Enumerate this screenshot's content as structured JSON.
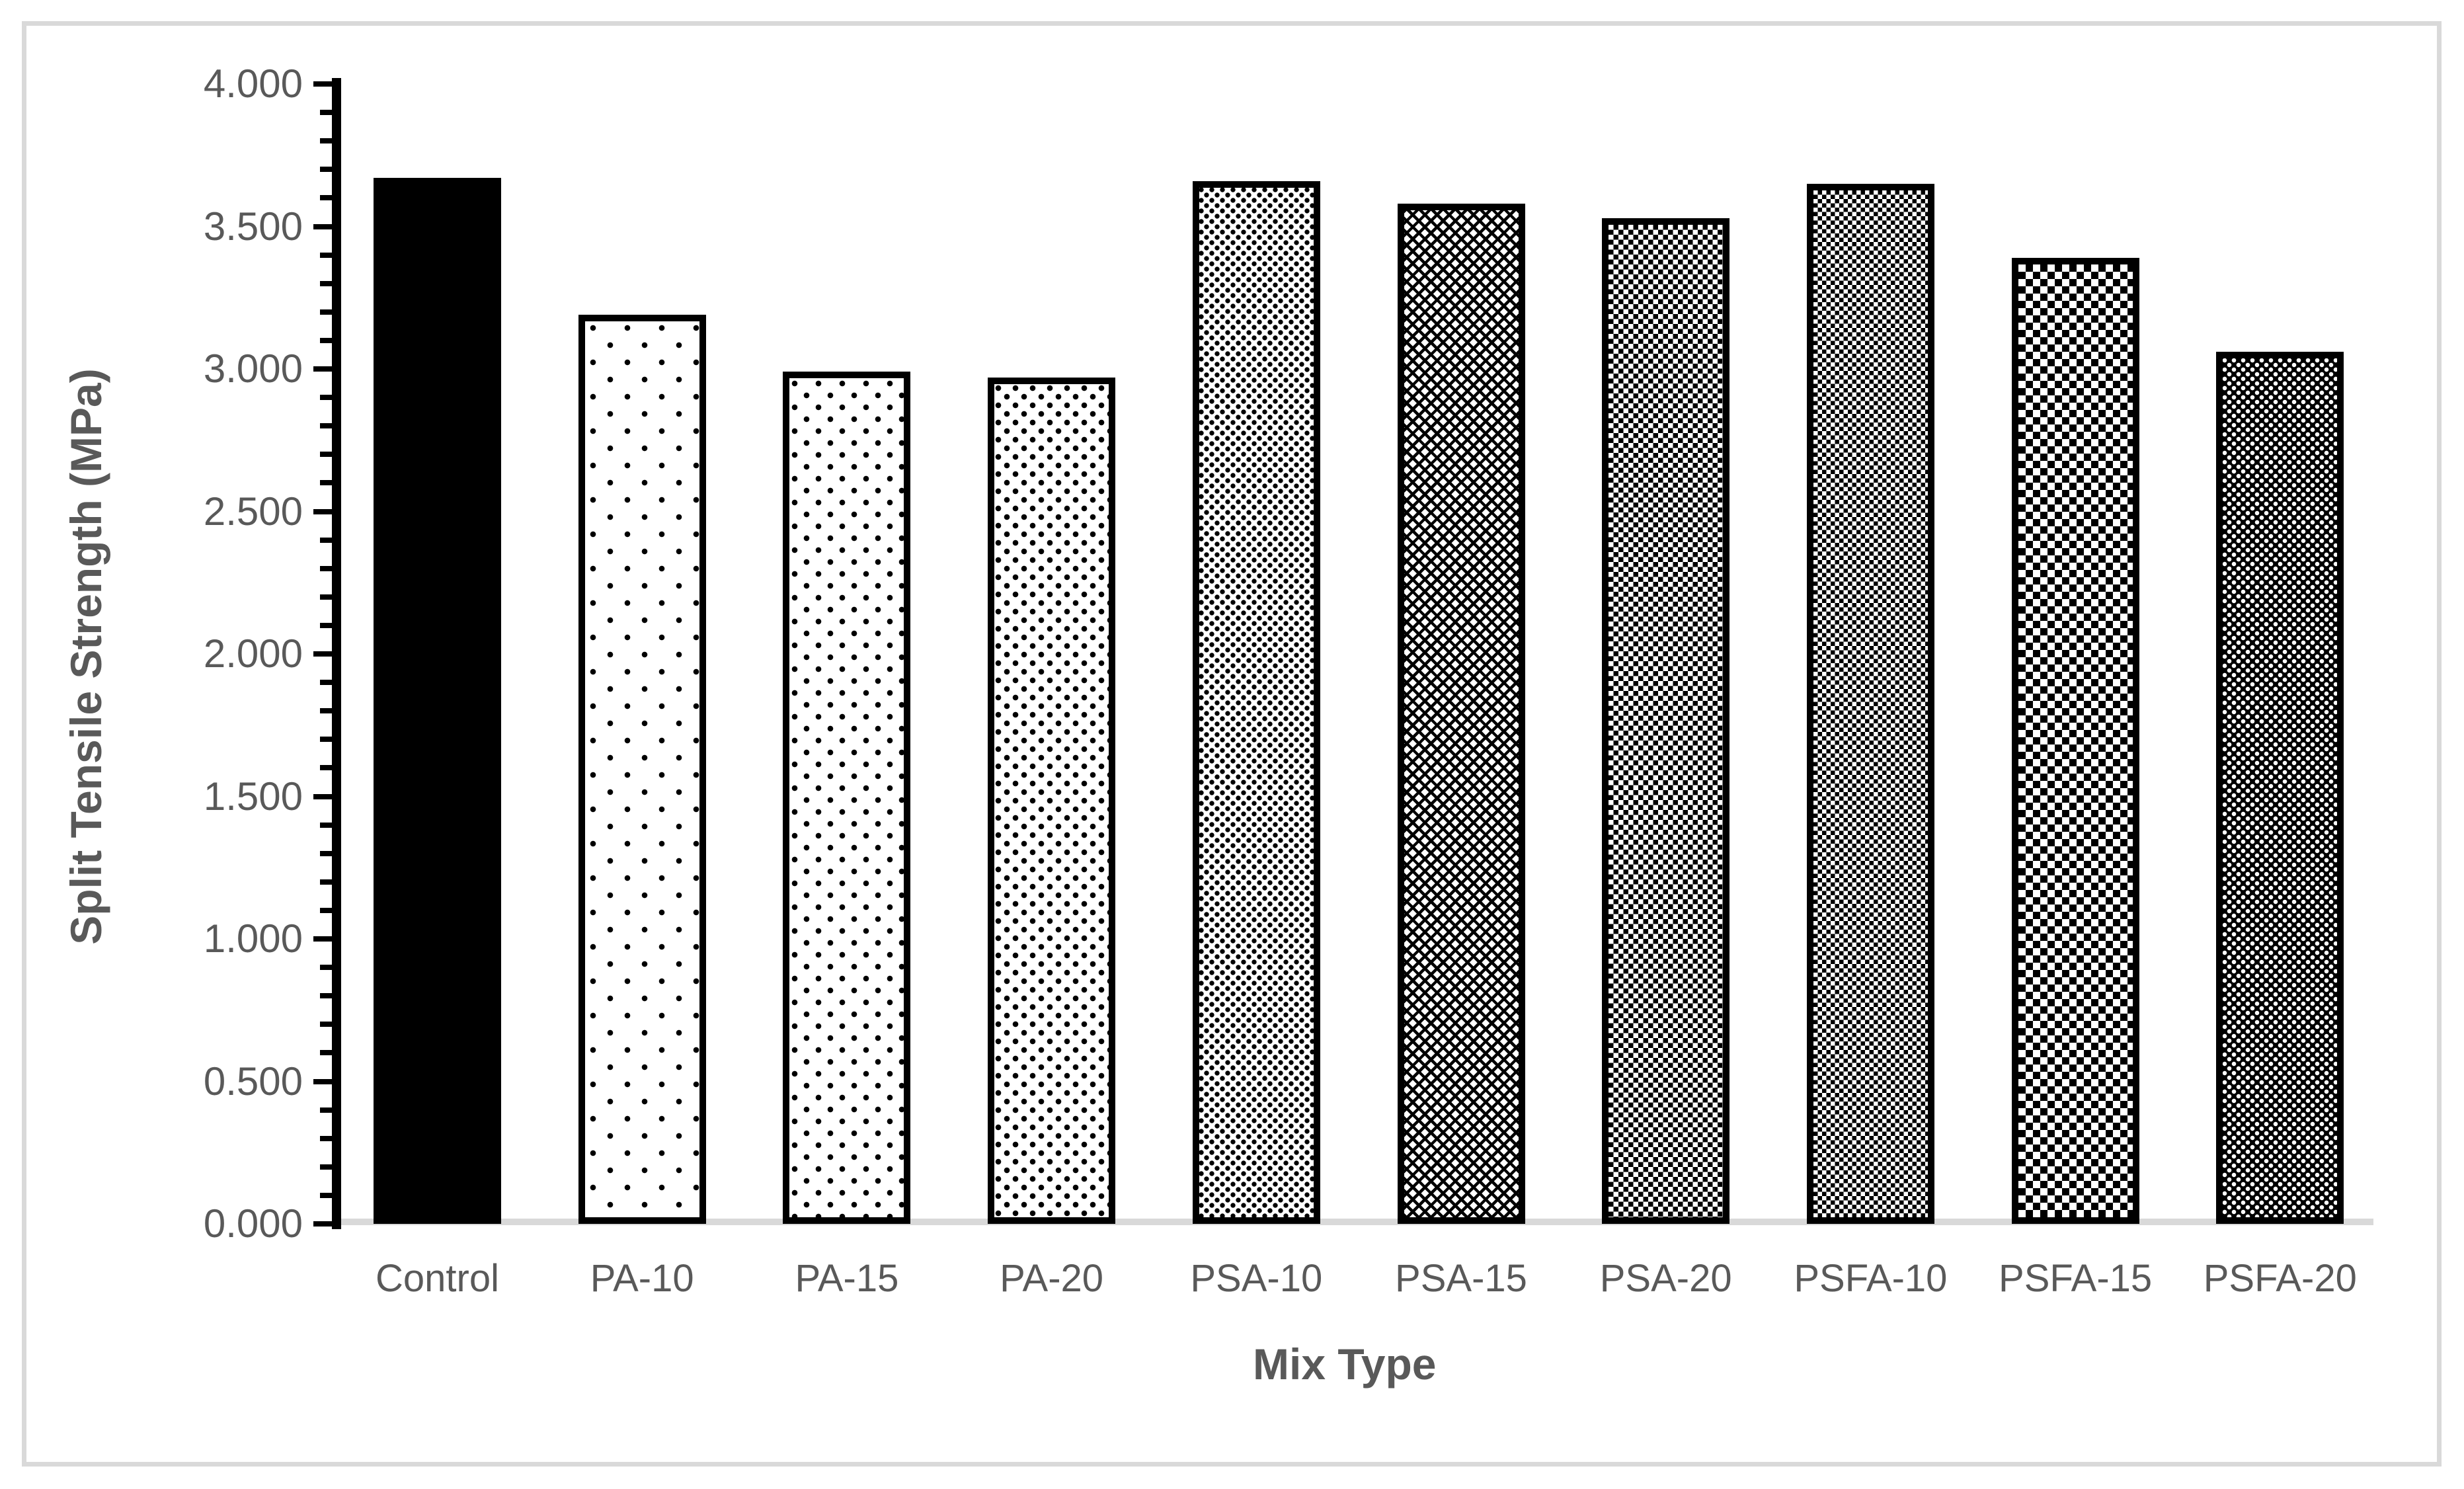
{
  "chart_data": {
    "type": "bar",
    "title": "",
    "xlabel": "Mix Type",
    "ylabel": "Split Tensile Strength (MPa)",
    "categories": [
      "Control",
      "PA-10",
      "PA-15",
      "PA-20",
      "PSA-10",
      "PSA-15",
      "PSA-20",
      "PSFA-10",
      "PSFA-15",
      "PSFA-20"
    ],
    "values": [
      3.67,
      3.19,
      2.99,
      2.97,
      3.66,
      3.58,
      3.53,
      3.65,
      3.39,
      3.06
    ],
    "bar_fill_styles": [
      "solid-black",
      "dots-sparse",
      "dots-medium",
      "dots-dense",
      "dots-fine",
      "diagonal-lattice",
      "checker-fine",
      "checker-dense",
      "checker-coarse",
      "white-dots-on-black"
    ],
    "ylim": [
      0.0,
      4.0
    ],
    "ytick_major_labels": [
      "0.000",
      "0.500",
      "1.000",
      "1.500",
      "2.000",
      "2.500",
      "3.000",
      "3.500",
      "4.000"
    ],
    "ytick_major_values": [
      0.0,
      0.5,
      1.0,
      1.5,
      2.0,
      2.5,
      3.0,
      3.5,
      4.0
    ],
    "ytick_minor_step": 0.1,
    "grid": "off",
    "legend": "none",
    "colors": {
      "bar_black": "#000000",
      "label_text": "#595959",
      "frame_gray": "#d9d9d9",
      "baseline_gray": "#d9d9d9",
      "background": "#ffffff"
    }
  }
}
